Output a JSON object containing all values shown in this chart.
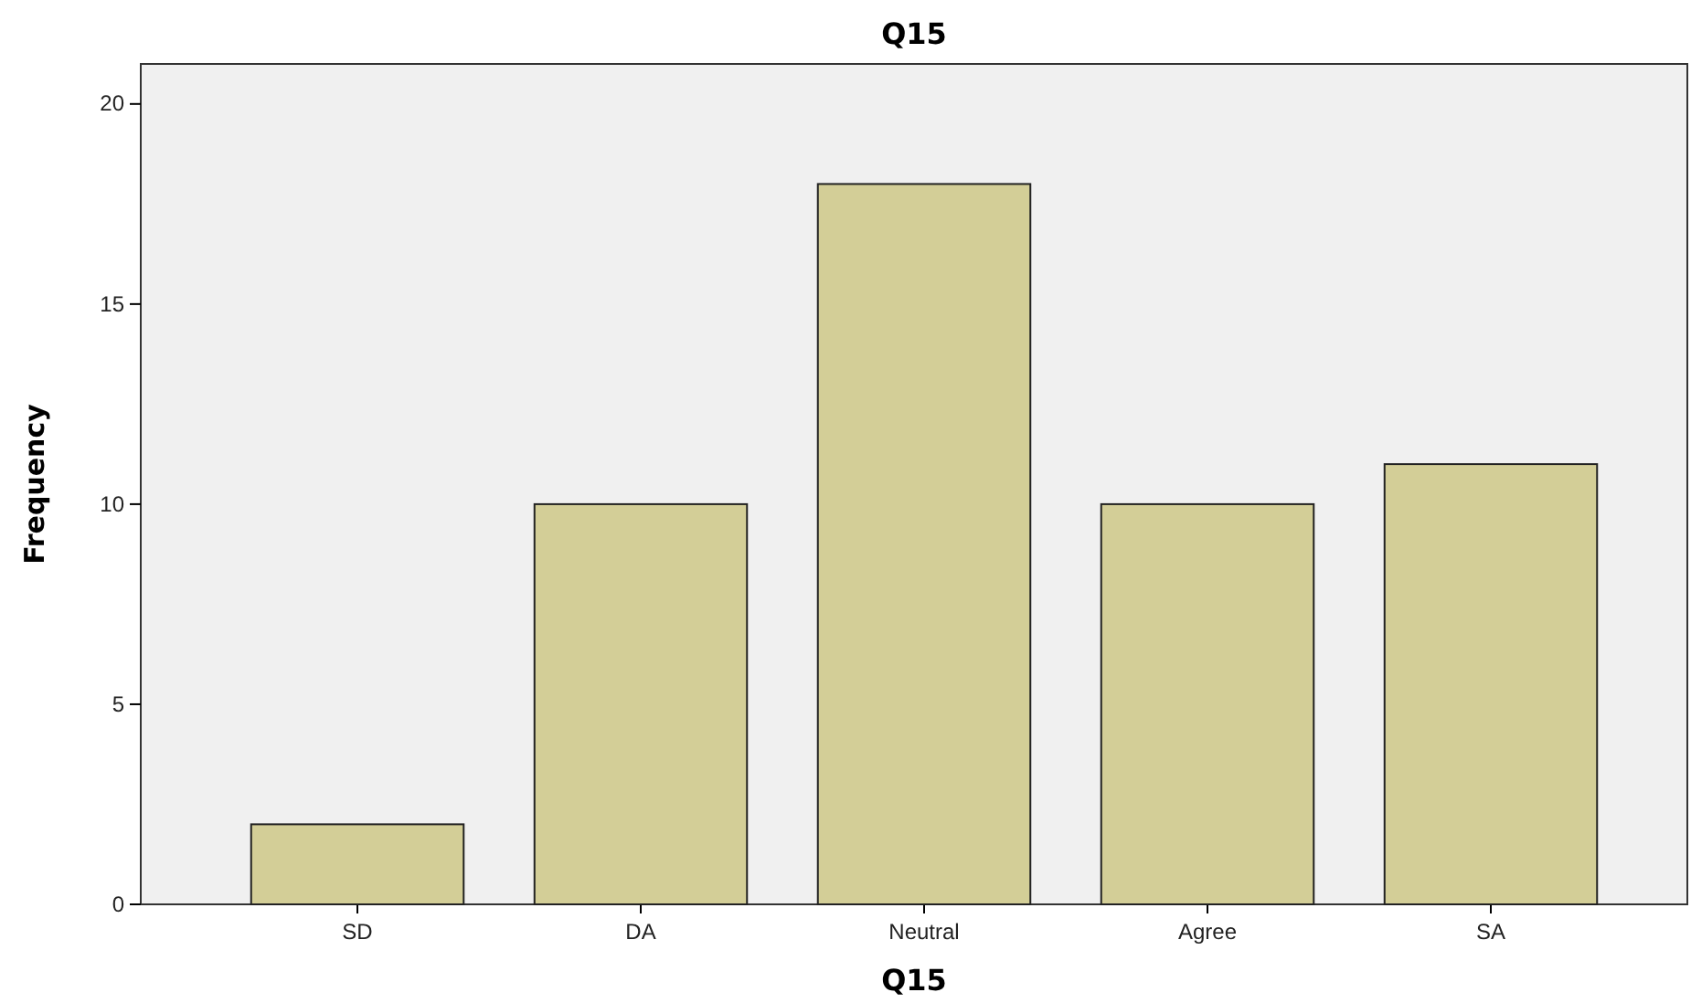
{
  "chart_data": {
    "type": "bar",
    "title": "Q15",
    "xlabel": "Q15",
    "ylabel": "Frequency",
    "categories": [
      "SD",
      "DA",
      "Neutral",
      "Agree",
      "SA"
    ],
    "values": [
      2,
      10,
      18,
      10,
      11
    ],
    "color": "#d3ce97",
    "ylim": [
      0,
      21
    ],
    "yticks": [
      0,
      5,
      10,
      15,
      20
    ],
    "grid": false
  }
}
